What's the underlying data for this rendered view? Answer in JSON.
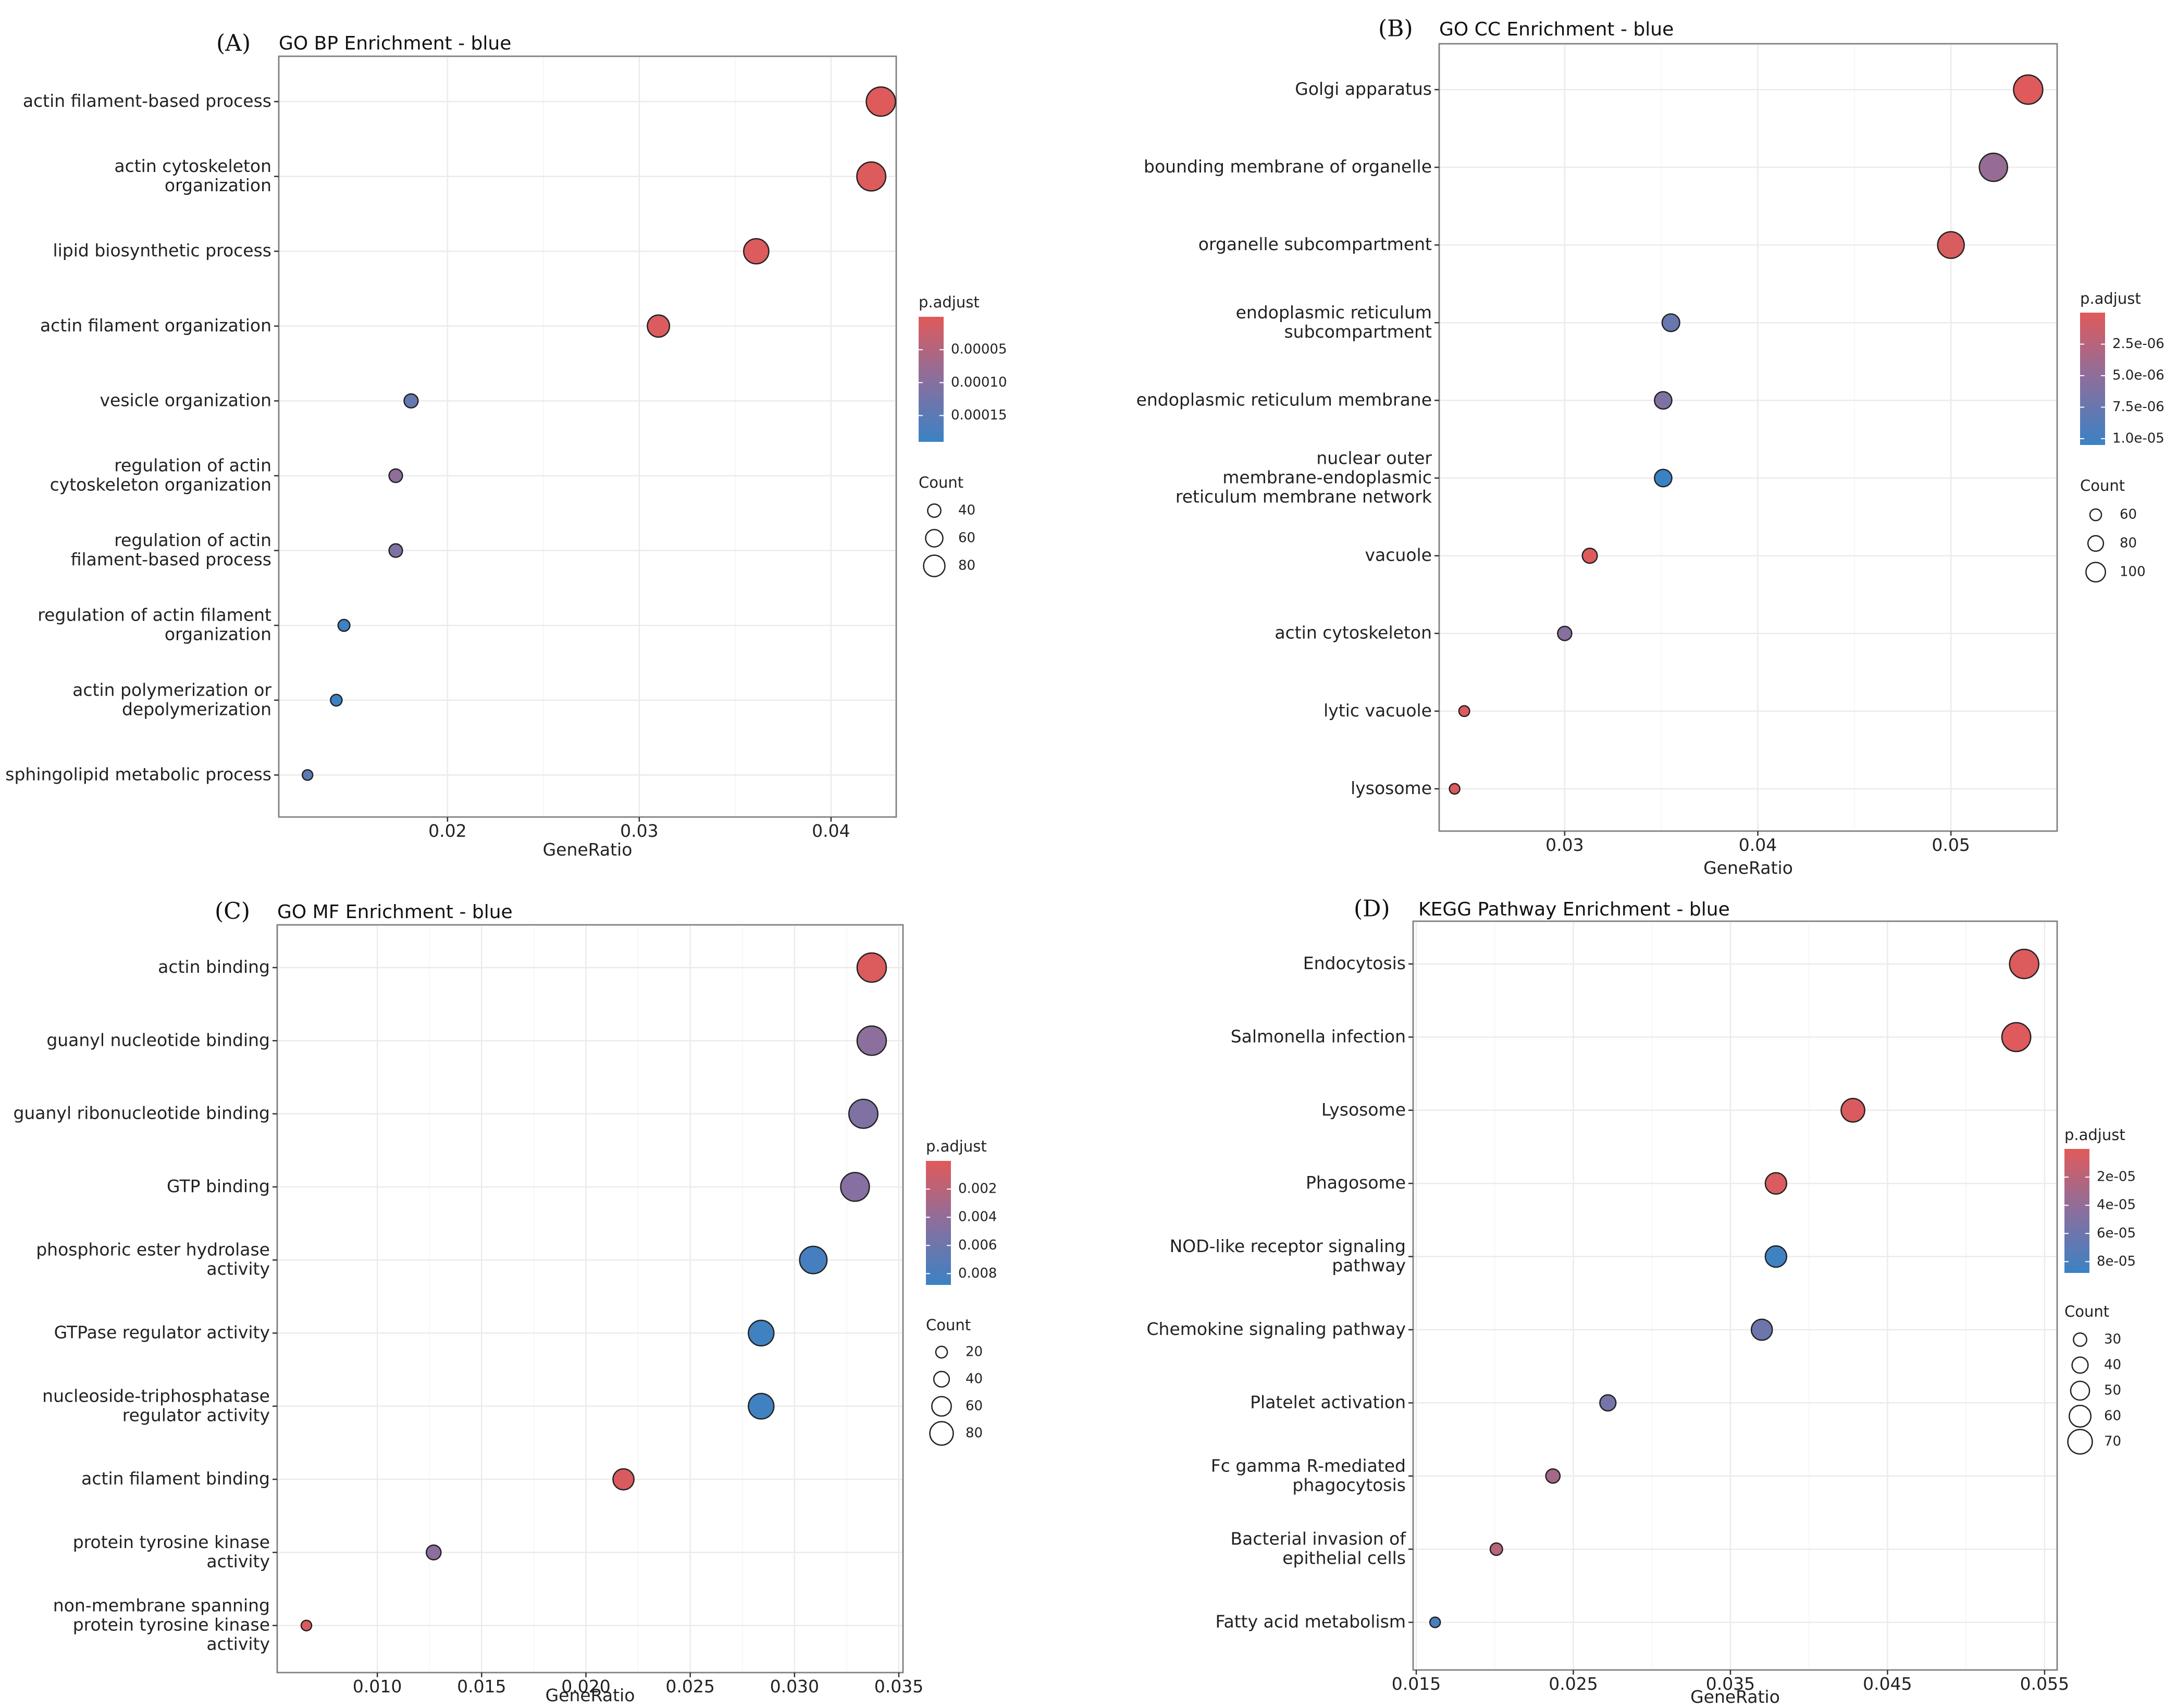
{
  "chart_data": [
    {
      "panel": "(A)",
      "type": "scatter",
      "title": "GO BP Enrichment - blue",
      "xlabel": "GeneRatio",
      "xlim": [
        0.0112,
        0.0434
      ],
      "xticks": [
        0.02,
        0.03,
        0.04
      ],
      "xtick_labels": [
        "0.02",
        "0.03",
        "0.04"
      ],
      "categories": [
        "actin filament-based process",
        "actin cytoskeleton organization",
        "lipid biosynthetic process",
        "actin filament organization",
        "vesicle organization",
        "regulation of actin cytoskeleton organization",
        "regulation of actin filament-based process",
        "regulation of actin filament organization",
        "actin polymerization or depolymerization",
        "sphingolipid metabolic process"
      ],
      "category_lines": [
        [
          "actin filament-based process"
        ],
        [
          "actin cytoskeleton",
          "organization"
        ],
        [
          "lipid biosynthetic process"
        ],
        [
          "actin filament organization"
        ],
        [
          "vesicle organization"
        ],
        [
          "regulation of actin",
          "cytoskeleton organization"
        ],
        [
          "regulation of actin",
          "filament-based process"
        ],
        [
          "regulation of actin filament",
          "organization"
        ],
        [
          "actin polymerization or",
          "depolymerization"
        ],
        [
          "sphingolipid metabolic process"
        ]
      ],
      "gene_ratio": [
        0.0426,
        0.0421,
        0.0361,
        0.031,
        0.0181,
        0.0173,
        0.0173,
        0.0146,
        0.0142,
        0.0127
      ],
      "count": [
        98,
        97,
        83,
        72,
        42,
        40,
        40,
        34,
        33,
        29
      ],
      "p_adjust": [
        2e-06,
        3e-06,
        4e-06,
        6e-06,
        0.00014,
        9e-05,
        0.00011,
        0.000185,
        0.00019,
        0.00015
      ],
      "color_legend": {
        "title": "p.adjust",
        "min": 0.0,
        "max": 0.00019,
        "ticks": [
          5e-05,
          0.0001,
          0.00015
        ],
        "tick_labels": [
          "0.00005",
          "0.00010",
          "0.00015"
        ]
      },
      "size_legend": {
        "title": "Count",
        "values": [
          40,
          60,
          80
        ],
        "labels": [
          "40",
          "60",
          "80"
        ]
      },
      "size_domain": [
        29,
        98
      ]
    },
    {
      "panel": "(B)",
      "type": "scatter",
      "title": "GO CC Enrichment - blue",
      "xlabel": "GeneRatio",
      "xlim": [
        0.0235,
        0.0555
      ],
      "xticks": [
        0.03,
        0.04,
        0.05
      ],
      "xtick_labels": [
        "0.03",
        "0.04",
        "0.05"
      ],
      "categories": [
        "Golgi apparatus",
        "bounding membrane of organelle",
        "organelle subcompartment",
        "endoplasmic reticulum subcompartment",
        "endoplasmic reticulum membrane",
        "nuclear outer membrane-endoplasmic reticulum membrane network",
        "vacuole",
        "actin cytoskeleton",
        "lytic vacuole",
        "lysosome"
      ],
      "category_lines": [
        [
          "Golgi apparatus"
        ],
        [
          "bounding membrane of organelle"
        ],
        [
          "organelle subcompartment"
        ],
        [
          "endoplasmic reticulum",
          "subcompartment"
        ],
        [
          "endoplasmic reticulum membrane"
        ],
        [
          "nuclear outer",
          "membrane-endoplasmic",
          "reticulum membrane network"
        ],
        [
          "vacuole"
        ],
        [
          "actin cytoskeleton"
        ],
        [
          "lytic vacuole"
        ],
        [
          "lysosome"
        ]
      ],
      "gene_ratio": [
        0.054,
        0.0522,
        0.05,
        0.0355,
        0.0351,
        0.0351,
        0.0313,
        0.03,
        0.0248,
        0.0243
      ],
      "count": [
        128,
        124,
        118,
        84,
        83,
        83,
        74,
        71,
        58,
        57
      ],
      "p_adjust": [
        1e-07,
        4.5e-06,
        4e-07,
        7.5e-06,
        6e-06,
        1.1e-05,
        2e-07,
        5.5e-06,
        1e-07,
        1e-07
      ],
      "color_legend": {
        "title": "p.adjust",
        "min": 0.0,
        "max": 1.05e-05,
        "ticks": [
          2.5e-06,
          5e-06,
          7.5e-06,
          1e-05
        ],
        "tick_labels": [
          "2.5e-06",
          "5.0e-06",
          "7.5e-06",
          "1.0e-05"
        ]
      },
      "size_legend": {
        "title": "Count",
        "values": [
          60,
          80,
          100
        ],
        "labels": [
          "60",
          "80",
          "100"
        ]
      },
      "size_domain": [
        57,
        128
      ]
    },
    {
      "panel": "(C)",
      "type": "scatter",
      "title": "GO MF Enrichment - blue",
      "xlabel": "GeneRatio",
      "xlim": [
        0.0052,
        0.0352
      ],
      "xticks": [
        0.01,
        0.015,
        0.02,
        0.025,
        0.03,
        0.035
      ],
      "xtick_labels": [
        "0.010",
        "0.015",
        "0.020",
        "0.025",
        "0.030",
        "0.035"
      ],
      "categories": [
        "actin binding",
        "guanyl nucleotide binding",
        "guanyl ribonucleotide binding",
        "GTP binding",
        "phosphoric ester hydrolase activity",
        "GTPase regulator activity",
        "nucleoside-triphosphatase regulator activity",
        "actin filament binding",
        "protein tyrosine kinase activity",
        "non-membrane spanning protein tyrosine kinase activity"
      ],
      "category_lines": [
        [
          "actin binding"
        ],
        [
          "guanyl nucleotide binding"
        ],
        [
          "guanyl ribonucleotide binding"
        ],
        [
          "GTP binding"
        ],
        [
          "phosphoric ester hydrolase",
          "activity"
        ],
        [
          "GTPase regulator activity"
        ],
        [
          "nucleoside-triphosphatase",
          "regulator activity"
        ],
        [
          "actin filament binding"
        ],
        [
          "protein tyrosine kinase",
          "activity"
        ],
        [
          "non-membrane spanning",
          "protein tyrosine kinase",
          "activity"
        ]
      ],
      "gene_ratio": [
        0.0337,
        0.0337,
        0.0333,
        0.0329,
        0.0309,
        0.0284,
        0.0284,
        0.0218,
        0.0127,
        0.0066
      ],
      "count": [
        88,
        88,
        87,
        86,
        81,
        74,
        74,
        57,
        33,
        17
      ],
      "p_adjust": [
        0.0002,
        0.0043,
        0.005,
        0.0047,
        0.0082,
        0.0085,
        0.0085,
        0.0003,
        0.0043,
        0.0003
      ],
      "color_legend": {
        "title": "p.adjust",
        "min": 0.0,
        "max": 0.0088,
        "ticks": [
          0.002,
          0.004,
          0.006,
          0.008
        ],
        "tick_labels": [
          "0.002",
          "0.004",
          "0.006",
          "0.008"
        ]
      },
      "size_legend": {
        "title": "Count",
        "values": [
          20,
          40,
          60,
          80
        ],
        "labels": [
          "20",
          "40",
          "60",
          "80"
        ]
      },
      "size_domain": [
        17,
        88
      ]
    },
    {
      "panel": "(D)",
      "type": "scatter",
      "title": "KEGG Pathway Enrichment - blue",
      "xlabel": "GeneRatio",
      "xlim": [
        0.0148,
        0.0558
      ],
      "xticks": [
        0.015,
        0.025,
        0.035,
        0.045,
        0.055
      ],
      "xtick_labels": [
        "0.015",
        "0.025",
        "0.035",
        "0.045",
        "0.055"
      ],
      "categories": [
        "Endocytosis",
        "Salmonella infection",
        "Lysosome",
        "Phagosome",
        "NOD-like receptor signaling pathway",
        "Chemokine signaling pathway",
        "Platelet activation",
        "Fc gamma R-mediated phagocytosis",
        "Bacterial invasion of epithelial cells",
        "Fatty acid metabolism"
      ],
      "category_lines": [
        [
          "Endocytosis"
        ],
        [
          "Salmonella infection"
        ],
        [
          "Lysosome"
        ],
        [
          "Phagosome"
        ],
        [
          "NOD-like receptor signaling",
          "pathway"
        ],
        [
          "Chemokine signaling pathway"
        ],
        [
          "Platelet activation"
        ],
        [
          "Fc gamma R-mediated",
          "phagocytosis"
        ],
        [
          "Bacterial invasion of",
          "epithelial cells"
        ],
        [
          "Fatty acid metabolism"
        ]
      ],
      "gene_ratio": [
        0.0537,
        0.0532,
        0.0428,
        0.0379,
        0.0379,
        0.037,
        0.0272,
        0.0237,
        0.0201,
        0.0162
      ],
      "count": [
        72,
        71,
        57,
        51,
        51,
        50,
        37,
        32,
        27,
        22
      ],
      "p_adjust": [
        2e-06,
        1e-06,
        3e-06,
        4e-06,
        8.5e-05,
        6e-05,
        5.5e-05,
        3e-05,
        2e-05,
        8e-05
      ],
      "color_legend": {
        "title": "p.adjust",
        "min": 0.0,
        "max": 8.8e-05,
        "ticks": [
          2e-05,
          4e-05,
          6e-05,
          8e-05
        ],
        "tick_labels": [
          "2e-05",
          "4e-05",
          "6e-05",
          "8e-05"
        ]
      },
      "size_legend": {
        "title": "Count",
        "values": [
          30,
          40,
          50,
          60,
          70
        ],
        "labels": [
          "30",
          "40",
          "50",
          "60",
          "70"
        ]
      },
      "size_domain": [
        22,
        72
      ]
    }
  ],
  "colors": {
    "low_p": "#e05a5a",
    "mid": "#8a6f9e",
    "high_p": "#3b82c4",
    "grid": "#ebebeb",
    "frame": "#7f7f7f",
    "point_stroke": "#222222"
  }
}
